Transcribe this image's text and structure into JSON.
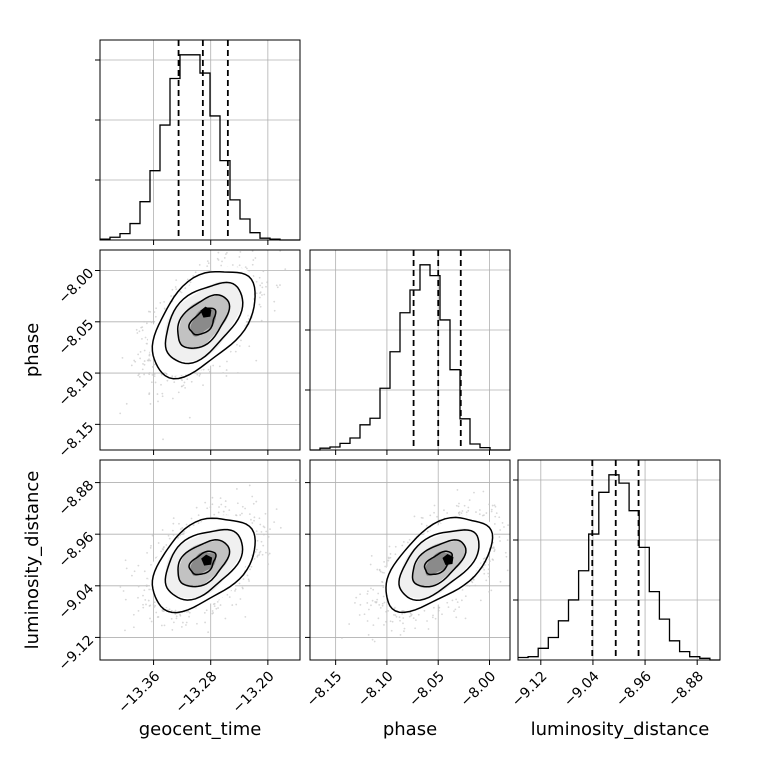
{
  "chart_data": {
    "type": "corner",
    "parameters": [
      {
        "name": "geocent_time",
        "range": [
          -13.435,
          -13.155
        ],
        "ticks": [
          -13.36,
          -13.28,
          -13.2
        ],
        "tick_labels": [
          "−13.36",
          "−13.28",
          "−13.20"
        ],
        "quantiles": [
          -13.325,
          -13.291,
          -13.256
        ]
      },
      {
        "name": "phase",
        "range": [
          -8.175,
          -7.98
        ],
        "ticks": [
          -8.15,
          -8.1,
          -8.05,
          -8.0
        ],
        "tick_labels": [
          "−8.15",
          "−8.10",
          "−8.05",
          "−8.00"
        ],
        "quantiles": [
          -8.074,
          -8.05,
          -8.028
        ]
      },
      {
        "name": "luminosity_distance",
        "range": [
          -9.155,
          -8.845
        ],
        "ticks": [
          -9.12,
          -9.04,
          -8.96,
          -8.88
        ],
        "tick_labels": [
          "−9.12",
          "−9.04",
          "−8.96",
          "−8.88"
        ],
        "quantiles": [
          -9.041,
          -9.005,
          -8.97
        ]
      }
    ],
    "axis_labels": {
      "col0": "geocent_time",
      "col1": "phase",
      "col2": "luminosity_distance",
      "row1": "phase",
      "row2": "luminosity_distance"
    },
    "histograms": [
      {
        "param": "geocent_time",
        "bin_edges": [
          -13.435,
          -13.421,
          -13.407,
          -13.393,
          -13.379,
          -13.365,
          -13.351,
          -13.337,
          -13.323,
          -13.309,
          -13.295,
          -13.281,
          -13.267,
          -13.253,
          -13.239,
          -13.225,
          -13.211,
          -13.197,
          -13.183,
          -13.169,
          -13.155
        ],
        "counts": [
          1,
          3,
          7,
          18,
          42,
          76,
          126,
          177,
          203,
          203,
          183,
          136,
          87,
          44,
          23,
          8,
          2,
          1,
          0,
          0
        ]
      },
      {
        "param": "phase",
        "bin_edges": [
          -8.175,
          -8.16525,
          -8.1555,
          -8.14575,
          -8.136,
          -8.12625,
          -8.1165,
          -8.10675,
          -8.097,
          -8.08725,
          -8.0775,
          -8.06775,
          -8.058,
          -8.04825,
          -8.0385,
          -8.02875,
          -8.019,
          -8.00925,
          -7.9995,
          -7.98975,
          -7.98
        ],
        "counts": [
          0,
          3,
          5,
          11,
          20,
          42,
          53,
          103,
          164,
          229,
          267,
          309,
          291,
          217,
          134,
          52,
          10,
          4,
          0,
          0
        ]
      },
      {
        "param": "luminosity_distance",
        "bin_edges": [
          -9.155,
          -9.1395,
          -9.124,
          -9.1085,
          -9.093,
          -9.0775,
          -9.062,
          -9.0465,
          -9.031,
          -9.0155,
          -9.0,
          -8.9845,
          -8.969,
          -8.9535,
          -8.938,
          -8.9225,
          -8.907,
          -8.8915,
          -8.876,
          -8.8605,
          -8.845
        ],
        "counts": [
          3,
          4,
          14,
          27,
          47,
          72,
          107,
          151,
          201,
          222,
          212,
          179,
          135,
          82,
          49,
          23,
          10,
          4,
          2,
          0
        ]
      }
    ],
    "pairs": [
      {
        "x": "geocent_time",
        "y": "phase",
        "mean": [
          -13.291,
          -8.05
        ],
        "sd": [
          0.036,
          0.026
        ],
        "corr": 0.5,
        "peak": [
          -13.286,
          -8.041
        ]
      },
      {
        "x": "geocent_time",
        "y": "luminosity_distance",
        "mean": [
          -13.291,
          -9.005
        ],
        "sd": [
          0.036,
          0.036
        ],
        "corr": 0.45,
        "peak": [
          -13.285,
          -9.001
        ]
      },
      {
        "x": "phase",
        "y": "luminosity_distance",
        "mean": [
          -8.05,
          -9.005
        ],
        "sd": [
          0.026,
          0.036
        ],
        "corr": 0.55,
        "peak": [
          -8.04,
          -9.0
        ]
      }
    ],
    "contour_levels_sigma": [
      0.5,
      1.0,
      1.5,
      2.0
    ],
    "grid": true,
    "colors": {
      "line": "#000000",
      "grid": "#b0b0b0",
      "points": "#c8c8c8",
      "quantile": "#000000"
    }
  }
}
